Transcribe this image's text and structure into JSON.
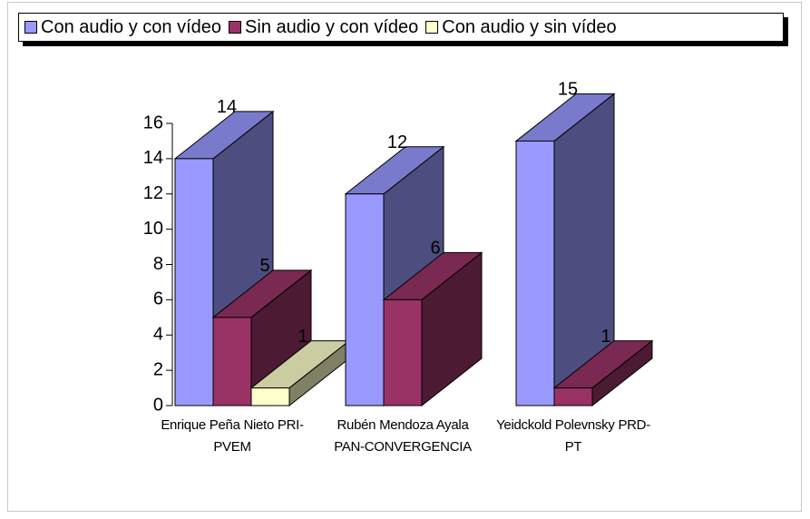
{
  "chart_data": {
    "type": "bar3d",
    "categories": [
      "Enrique Peña Nieto PRI-PVEM",
      "Rubén Mendoza Ayala PAN-CONVERGENCIA",
      "Yeidckold Polevnsky PRD-PT"
    ],
    "series": [
      {
        "name": "Con audio y con vídeo",
        "color": "#9999ff",
        "values": [
          14,
          12,
          15
        ]
      },
      {
        "name": "Sin audio y con vídeo",
        "color": "#993366",
        "values": [
          5,
          6,
          1
        ]
      },
      {
        "name": "Con audio y sin vídeo",
        "color": "#ffffcc",
        "values": [
          1,
          null,
          null
        ]
      }
    ],
    "ylim": [
      0,
      16
    ],
    "yticks": [
      0,
      2,
      4,
      6,
      8,
      10,
      12,
      14,
      16
    ],
    "legend": "top"
  }
}
